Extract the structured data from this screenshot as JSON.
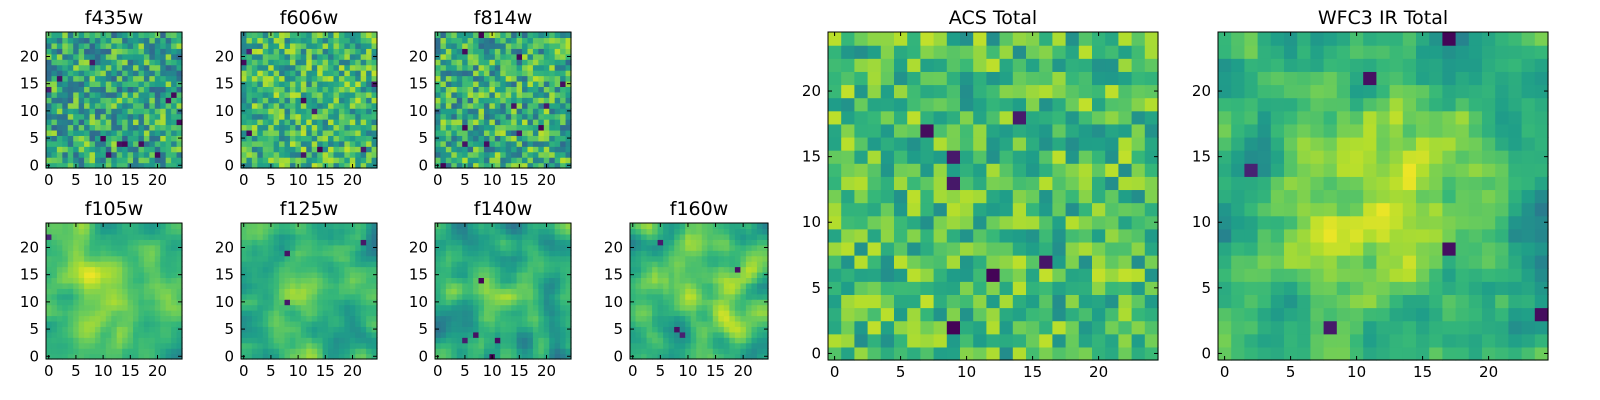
{
  "figure": {
    "background": "#ffffff"
  },
  "chart_data": [
    {
      "type": "heatmap",
      "title": "f435w",
      "grid_size": 25,
      "seed": 11,
      "smooth": 0,
      "mean": 0.6,
      "amplitude": 0.55,
      "dark_cells": 12,
      "xticks": [
        "0",
        "5",
        "10",
        "15",
        "20"
      ],
      "yticks": [
        "0",
        "5",
        "10",
        "15",
        "20"
      ],
      "xlim": [
        -0.5,
        24.5
      ],
      "ylim": [
        -0.5,
        24.5
      ],
      "colormap": "viridis"
    },
    {
      "type": "heatmap",
      "title": "f606w",
      "grid_size": 25,
      "seed": 23,
      "smooth": 0,
      "mean": 0.66,
      "amplitude": 0.5,
      "dark_cells": 9,
      "xticks": [
        "0",
        "5",
        "10",
        "15",
        "20"
      ],
      "yticks": [
        "0",
        "5",
        "10",
        "15",
        "20"
      ],
      "xlim": [
        -0.5,
        24.5
      ],
      "ylim": [
        -0.5,
        24.5
      ],
      "colormap": "viridis"
    },
    {
      "type": "heatmap",
      "title": "f814w",
      "grid_size": 25,
      "seed": 37,
      "smooth": 0,
      "mean": 0.62,
      "amplitude": 0.55,
      "dark_cells": 12,
      "xticks": [
        "0",
        "5",
        "10",
        "15",
        "20"
      ],
      "yticks": [
        "0",
        "5",
        "10",
        "15",
        "20"
      ],
      "xlim": [
        -0.5,
        24.5
      ],
      "ylim": [
        -0.5,
        24.5
      ],
      "colormap": "viridis"
    },
    {
      "type": "heatmap",
      "title": "f105w",
      "grid_size": 25,
      "seed": 41,
      "smooth": 2,
      "mean": 0.66,
      "amplitude": 0.4,
      "blob": [
        11,
        12,
        5,
        0.18
      ],
      "dark_cells": 1,
      "xticks": [
        "0",
        "5",
        "10",
        "15",
        "20"
      ],
      "yticks": [
        "0",
        "5",
        "10",
        "15",
        "20"
      ],
      "xlim": [
        -0.5,
        24.5
      ],
      "ylim": [
        -0.5,
        24.5
      ],
      "colormap": "viridis"
    },
    {
      "type": "heatmap",
      "title": "f125w",
      "grid_size": 25,
      "seed": 53,
      "smooth": 2,
      "mean": 0.62,
      "amplitude": 0.45,
      "blob": [
        10,
        11,
        5,
        0.12
      ],
      "dark_cells": 3,
      "xticks": [
        "0",
        "5",
        "10",
        "15",
        "20"
      ],
      "yticks": [
        "0",
        "5",
        "10",
        "15",
        "20"
      ],
      "xlim": [
        -0.5,
        24.5
      ],
      "ylim": [
        -0.5,
        24.5
      ],
      "colormap": "viridis"
    },
    {
      "type": "heatmap",
      "title": "f140w",
      "grid_size": 25,
      "seed": 67,
      "smooth": 2,
      "mean": 0.6,
      "amplitude": 0.45,
      "blob": [
        12,
        12,
        5,
        0.1
      ],
      "dark_cells": 5,
      "xticks": [
        "0",
        "5",
        "10",
        "15",
        "20"
      ],
      "yticks": [
        "0",
        "5",
        "10",
        "15",
        "20"
      ],
      "xlim": [
        -0.5,
        24.5
      ],
      "ylim": [
        -0.5,
        24.5
      ],
      "colormap": "viridis"
    },
    {
      "type": "heatmap",
      "title": "f160w",
      "grid_size": 25,
      "seed": 79,
      "smooth": 2,
      "mean": 0.66,
      "amplitude": 0.45,
      "blob": [
        12,
        12,
        5,
        0.14
      ],
      "dark_cells": 4,
      "xticks": [
        "0",
        "5",
        "10",
        "15",
        "20"
      ],
      "yticks": [
        "0",
        "5",
        "10",
        "15",
        "20"
      ],
      "xlim": [
        -0.5,
        24.5
      ],
      "ylim": [
        -0.5,
        24.5
      ],
      "colormap": "viridis"
    },
    {
      "type": "heatmap",
      "title": "ACS Total",
      "grid_size": 25,
      "seed": 97,
      "smooth": 0,
      "mean": 0.7,
      "amplitude": 0.42,
      "dark_cells": 7,
      "xticks": [
        "0",
        "5",
        "10",
        "15",
        "20"
      ],
      "yticks": [
        "0",
        "5",
        "10",
        "15",
        "20"
      ],
      "xlim": [
        -0.5,
        24.5
      ],
      "ylim": [
        -0.5,
        24.5
      ],
      "colormap": "viridis"
    },
    {
      "type": "heatmap",
      "title": "WFC3 IR Total",
      "grid_size": 25,
      "seed": 113,
      "smooth": 1,
      "mean": 0.6,
      "amplitude": 0.4,
      "blob": [
        12,
        11,
        5,
        0.3
      ],
      "dark_cells": 6,
      "xticks": [
        "0",
        "5",
        "10",
        "15",
        "20"
      ],
      "yticks": [
        "0",
        "5",
        "10",
        "15",
        "20"
      ],
      "xlim": [
        -0.5,
        24.5
      ],
      "ylim": [
        -0.5,
        24.5
      ],
      "colormap": "viridis"
    }
  ]
}
